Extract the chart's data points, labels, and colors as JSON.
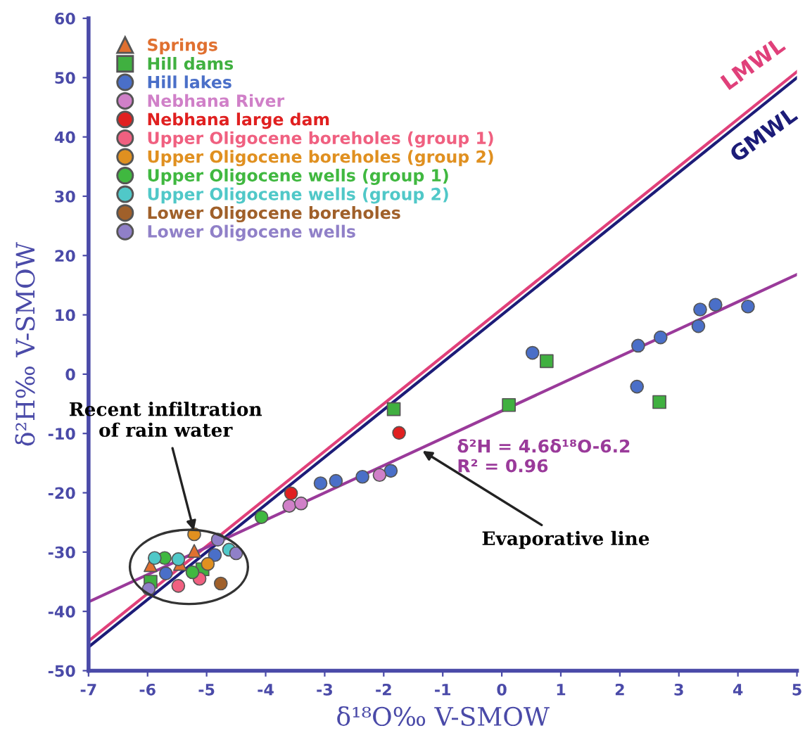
{
  "chart_data": {
    "type": "scatter",
    "xlabel": "δ¹⁸O‰ V-SMOW",
    "ylabel": "δ²H‰ V-SMOW",
    "xlim": [
      -7,
      5
    ],
    "ylim": [
      -50,
      60
    ],
    "xticks": [
      -7,
      -6,
      -5,
      -4,
      -3,
      -2,
      -1,
      0,
      1,
      2,
      3,
      4,
      5
    ],
    "yticks": [
      -50,
      -40,
      -30,
      -20,
      -10,
      0,
      10,
      20,
      30,
      40,
      50,
      60
    ],
    "grid": false,
    "legend": "top left",
    "marker": "circle",
    "series": [
      {
        "name": "Springs",
        "color": "#e07030",
        "marker": "triangle",
        "x": [
          -5.95,
          -5.45,
          -5.21
        ],
        "values": [
          -32.2,
          -32,
          -29.8
        ]
      },
      {
        "name": "Hill dams",
        "color": "#40b040",
        "marker": "square",
        "x": [
          0.76,
          2.67,
          0.12,
          -1.83,
          -5.95,
          -5.07
        ],
        "values": [
          2.2,
          -4.7,
          -5.2,
          -5.9,
          -35,
          -32.9
        ]
      },
      {
        "name": "Hill lakes",
        "color": "#4a6fc8",
        "x": [
          3.36,
          3.62,
          4.17,
          3.33,
          2.69,
          2.31,
          0.52,
          2.29,
          -3.07,
          -2.81,
          -2.36,
          -1.88,
          -5.69,
          -4.86
        ],
        "values": [
          10.9,
          11.7,
          11.4,
          8.1,
          6.2,
          4.8,
          3.6,
          -2.1,
          -18.4,
          -18,
          -17.3,
          -16.3,
          -33.6,
          -30.5
        ]
      },
      {
        "name": "Nebhana River",
        "color": "#d080c8",
        "x": [
          -3.6,
          -3.4,
          -2.07
        ],
        "values": [
          -22.2,
          -21.8,
          -17
        ]
      },
      {
        "name": "Nebhana large dam",
        "color": "#e02020",
        "x": [
          -1.74,
          -3.57
        ],
        "values": [
          -9.9,
          -20.1
        ]
      },
      {
        "name": "Upper Oligocene boreholes (group 1)",
        "color": "#f06080",
        "x": [
          -5.48,
          -5.12
        ],
        "values": [
          -35.7,
          -34.5
        ]
      },
      {
        "name": "Upper Oligocene boreholes (group 2)",
        "color": "#e09020",
        "x": [
          -5.21,
          -4.98
        ],
        "values": [
          -27,
          -32
        ]
      },
      {
        "name": "Upper Oligocene wells (group 1)",
        "color": "#40b840",
        "x": [
          -4.07,
          -5.71,
          -5.24
        ],
        "values": [
          -24.1,
          -31,
          -33.4
        ]
      },
      {
        "name": "Upper Oligocene wells (group 2)",
        "color": "#50c8c8",
        "x": [
          -5.48,
          -4.62,
          -5.88
        ],
        "values": [
          -31.2,
          -29.6,
          -31
        ]
      },
      {
        "name": "Lower Oligocene boreholes",
        "color": "#a0602a",
        "x": [
          -4.76
        ],
        "values": [
          -35.3
        ]
      },
      {
        "name": "Lower Oligocene wells",
        "color": "#9080c8",
        "x": [
          -4.81,
          -4.5,
          -5.98
        ],
        "values": [
          -27.9,
          -30.2,
          -36.2
        ]
      },
      {
        "name": "LMWL",
        "type": "line",
        "color": "#e0407a",
        "marker": "none",
        "x": [
          -7,
          5
        ],
        "values": [
          -45,
          51
        ]
      },
      {
        "name": "GMWL",
        "type": "line",
        "color": "#1c1c78",
        "marker": "none",
        "x": [
          -7,
          5
        ],
        "values": [
          -46,
          50
        ]
      },
      {
        "type": "line",
        "color": "#9a3a9a",
        "marker": "none",
        "x": [
          -7,
          5
        ],
        "values": [
          -38.4,
          16.8
        ]
      }
    ],
    "annotations": [
      {
        "text": "Recent infiltration\nof rain water",
        "x": -5.2,
        "y": -27
      },
      {
        "text": "Evaporative line",
        "x": -1.4,
        "y": -12.6
      },
      "δ²H = 4.6δ¹⁸O-6.2\nR² = 0.96"
    ]
  }
}
